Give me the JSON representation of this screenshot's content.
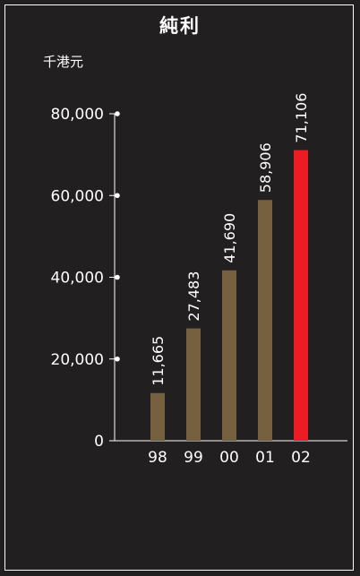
{
  "title": "純利",
  "unit": "千港元",
  "colors": {
    "background": "#221f20",
    "bar": "#77603f",
    "highlight_bar": "#ed1c24",
    "axis": "#ffffff"
  },
  "chart_data": {
    "type": "bar",
    "title": "純利",
    "ylabel": "千港元",
    "xlabel": "",
    "categories": [
      "98",
      "99",
      "00",
      "01",
      "02"
    ],
    "values": [
      11665,
      27483,
      41690,
      58906,
      71106
    ],
    "value_labels": [
      "11,665",
      "27,483",
      "41,690",
      "58,906",
      "71,106"
    ],
    "highlight_index": 4,
    "ylim": [
      0,
      80000
    ],
    "yticks": [
      0,
      20000,
      40000,
      60000,
      80000
    ],
    "ytick_labels": [
      "0",
      "20,000",
      "40,000",
      "60,000",
      "80,000"
    ],
    "grid": false,
    "legend": "none"
  }
}
